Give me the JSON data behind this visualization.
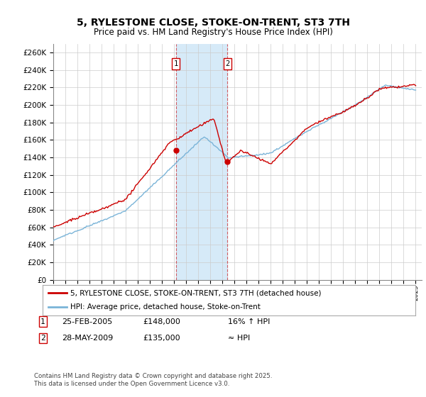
{
  "title": "5, RYLESTONE CLOSE, STOKE-ON-TRENT, ST3 7TH",
  "subtitle": "Price paid vs. HM Land Registry's House Price Index (HPI)",
  "ylim": [
    0,
    270000
  ],
  "yticks": [
    0,
    20000,
    40000,
    60000,
    80000,
    100000,
    120000,
    140000,
    160000,
    180000,
    200000,
    220000,
    240000,
    260000
  ],
  "xlim_start": 1995.0,
  "xlim_end": 2025.5,
  "sale1_date": 2005.15,
  "sale1_price": 148000,
  "sale2_date": 2009.42,
  "sale2_price": 135000,
  "hpi_color": "#7ab4d8",
  "price_color": "#cc0000",
  "shade_color": "#d6eaf8",
  "grid_color": "#cccccc",
  "bg_color": "#ffffff",
  "box_color": "#cc0000",
  "legend_line1": "5, RYLESTONE CLOSE, STOKE-ON-TRENT, ST3 7TH (detached house)",
  "legend_line2": "HPI: Average price, detached house, Stoke-on-Trent",
  "table_row1": [
    "1",
    "25-FEB-2005",
    "£148,000",
    "16% ↑ HPI"
  ],
  "table_row2": [
    "2",
    "28-MAY-2009",
    "£135,000",
    "≈ HPI"
  ],
  "footnote": "Contains HM Land Registry data © Crown copyright and database right 2025.\nThis data is licensed under the Open Government Licence v3.0."
}
